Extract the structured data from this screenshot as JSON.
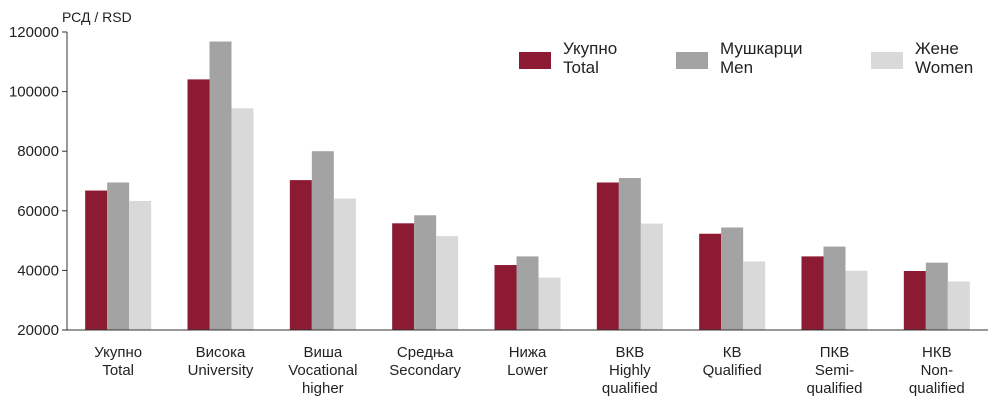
{
  "chart_data": {
    "type": "bar",
    "y_unit_label": "РСД / RSD",
    "ylim": [
      20000,
      120000
    ],
    "yticks": [
      "20000",
      "40000",
      "60000",
      "80000",
      "100000",
      "120000"
    ],
    "ytick_values": [
      20000,
      40000,
      60000,
      80000,
      100000,
      120000
    ],
    "grid": false,
    "legend_position": "top-right",
    "categories": [
      [
        "Укупно",
        "Total"
      ],
      [
        "Висока",
        "University"
      ],
      [
        "Виша",
        "Vocational",
        "higher"
      ],
      [
        "Средња",
        "Secondary"
      ],
      [
        "Нижа",
        "Lower"
      ],
      [
        "ВКВ",
        "Highly",
        "qualified"
      ],
      [
        "КВ",
        "Qualified"
      ],
      [
        "ПКВ",
        "Semi-",
        "qualified"
      ],
      [
        "НКВ",
        "Non-",
        "qualified"
      ]
    ],
    "series": [
      {
        "name": [
          "Укупно",
          "Total"
        ],
        "color": "#8b1a32",
        "values": [
          66800,
          104100,
          70300,
          55800,
          41800,
          69500,
          52300,
          44700,
          39800
        ]
      },
      {
        "name": [
          "Мушкарци",
          "Men"
        ],
        "color": "#a3a3a3",
        "values": [
          69500,
          116800,
          80000,
          58500,
          44700,
          71000,
          54400,
          48000,
          42600
        ]
      },
      {
        "name": [
          "Жене",
          "Women"
        ],
        "color": "#d9d9d9",
        "values": [
          63300,
          94400,
          64100,
          51500,
          37600,
          55700,
          43000,
          39900,
          36300
        ]
      }
    ]
  }
}
